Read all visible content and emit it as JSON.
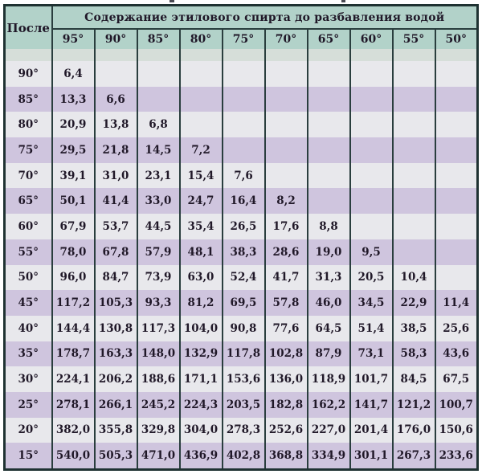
{
  "colors": {
    "header_teal": "#b2d2c9",
    "spacer_grey": "#d6ded9",
    "row_light": "#e8e8ec",
    "row_lavender": "#cfc5de",
    "border_dark": "#1f3232",
    "grid_line": "#2a3e3e",
    "text_dark": "#201828",
    "page_bg": "#ffffff"
  },
  "table": {
    "title": "Содержание этилового спирта до разбавления водой",
    "corner_label": "После",
    "columns": [
      "95°",
      "90°",
      "85°",
      "80°",
      "75°",
      "70°",
      "65°",
      "60°",
      "55°",
      "50°"
    ],
    "rows": [
      {
        "label": "90°",
        "cells": [
          "6,4",
          "",
          "",
          "",
          "",
          "",
          "",
          "",
          "",
          ""
        ]
      },
      {
        "label": "85°",
        "cells": [
          "13,3",
          "6,6",
          "",
          "",
          "",
          "",
          "",
          "",
          "",
          ""
        ]
      },
      {
        "label": "80°",
        "cells": [
          "20,9",
          "13,8",
          "6,8",
          "",
          "",
          "",
          "",
          "",
          "",
          ""
        ]
      },
      {
        "label": "75°",
        "cells": [
          "29,5",
          "21,8",
          "14,5",
          "7,2",
          "",
          "",
          "",
          "",
          "",
          ""
        ]
      },
      {
        "label": "70°",
        "cells": [
          "39,1",
          "31,0",
          "23,1",
          "15,4",
          "7,6",
          "",
          "",
          "",
          "",
          ""
        ]
      },
      {
        "label": "65°",
        "cells": [
          "50,1",
          "41,4",
          "33,0",
          "24,7",
          "16,4",
          "8,2",
          "",
          "",
          "",
          ""
        ]
      },
      {
        "label": "60°",
        "cells": [
          "67,9",
          "53,7",
          "44,5",
          "35,4",
          "26,5",
          "17,6",
          "8,8",
          "",
          "",
          ""
        ]
      },
      {
        "label": "55°",
        "cells": [
          "78,0",
          "67,8",
          "57,9",
          "48,1",
          "38,3",
          "28,6",
          "19,0",
          "9,5",
          "",
          ""
        ]
      },
      {
        "label": "50°",
        "cells": [
          "96,0",
          "84,7",
          "73,9",
          "63,0",
          "52,4",
          "41,7",
          "31,3",
          "20,5",
          "10,4",
          ""
        ]
      },
      {
        "label": "45°",
        "cells": [
          "117,2",
          "105,3",
          "93,3",
          "81,2",
          "69,5",
          "57,8",
          "46,0",
          "34,5",
          "22,9",
          "11,4"
        ]
      },
      {
        "label": "40°",
        "cells": [
          "144,4",
          "130,8",
          "117,3",
          "104,0",
          "90,8",
          "77,6",
          "64,5",
          "51,4",
          "38,5",
          "25,6"
        ]
      },
      {
        "label": "35°",
        "cells": [
          "178,7",
          "163,3",
          "148,0",
          "132,9",
          "117,8",
          "102,8",
          "87,9",
          "73,1",
          "58,3",
          "43,6"
        ]
      },
      {
        "label": "30°",
        "cells": [
          "224,1",
          "206,2",
          "188,6",
          "171,1",
          "153,6",
          "136,0",
          "118,9",
          "101,7",
          "84,5",
          "67,5"
        ]
      },
      {
        "label": "25°",
        "cells": [
          "278,1",
          "266,1",
          "245,2",
          "224,3",
          "203,5",
          "182,8",
          "162,2",
          "141,7",
          "121,2",
          "100,7"
        ]
      },
      {
        "label": "20°",
        "cells": [
          "382,0",
          "355,8",
          "329,8",
          "304,0",
          "278,3",
          "252,6",
          "227,0",
          "201,4",
          "176,0",
          "150,6"
        ]
      },
      {
        "label": "15°",
        "cells": [
          "540,0",
          "505,3",
          "471,0",
          "436,9",
          "402,8",
          "368,8",
          "334,9",
          "301,1",
          "267,3",
          "233,6"
        ]
      }
    ]
  },
  "chart_data": {
    "type": "table",
    "title": "Содержание этилового спирта до разбавления водой",
    "row_axis_label": "После",
    "columns": [
      95,
      90,
      85,
      80,
      75,
      70,
      65,
      60,
      55,
      50
    ],
    "rows": [
      {
        "label": 90,
        "values": [
          6.4,
          null,
          null,
          null,
          null,
          null,
          null,
          null,
          null,
          null
        ]
      },
      {
        "label": 85,
        "values": [
          13.3,
          6.6,
          null,
          null,
          null,
          null,
          null,
          null,
          null,
          null
        ]
      },
      {
        "label": 80,
        "values": [
          20.9,
          13.8,
          6.8,
          null,
          null,
          null,
          null,
          null,
          null,
          null
        ]
      },
      {
        "label": 75,
        "values": [
          29.5,
          21.8,
          14.5,
          7.2,
          null,
          null,
          null,
          null,
          null,
          null
        ]
      },
      {
        "label": 70,
        "values": [
          39.1,
          31.0,
          23.1,
          15.4,
          7.6,
          null,
          null,
          null,
          null,
          null
        ]
      },
      {
        "label": 65,
        "values": [
          50.1,
          41.4,
          33.0,
          24.7,
          16.4,
          8.2,
          null,
          null,
          null,
          null
        ]
      },
      {
        "label": 60,
        "values": [
          67.9,
          53.7,
          44.5,
          35.4,
          26.5,
          17.6,
          8.8,
          null,
          null,
          null
        ]
      },
      {
        "label": 55,
        "values": [
          78.0,
          67.8,
          57.9,
          48.1,
          38.3,
          28.6,
          19.0,
          9.5,
          null,
          null
        ]
      },
      {
        "label": 50,
        "values": [
          96.0,
          84.7,
          73.9,
          63.0,
          52.4,
          41.7,
          31.3,
          20.5,
          10.4,
          null
        ]
      },
      {
        "label": 45,
        "values": [
          117.2,
          105.3,
          93.3,
          81.2,
          69.5,
          57.8,
          46.0,
          34.5,
          22.9,
          11.4
        ]
      },
      {
        "label": 40,
        "values": [
          144.4,
          130.8,
          117.3,
          104.0,
          90.8,
          77.6,
          64.5,
          51.4,
          38.5,
          25.6
        ]
      },
      {
        "label": 35,
        "values": [
          178.7,
          163.3,
          148.0,
          132.9,
          117.8,
          102.8,
          87.9,
          73.1,
          58.3,
          43.6
        ]
      },
      {
        "label": 30,
        "values": [
          224.1,
          206.2,
          188.6,
          171.1,
          153.6,
          136.0,
          118.9,
          101.7,
          84.5,
          67.5
        ]
      },
      {
        "label": 25,
        "values": [
          278.1,
          266.1,
          245.2,
          224.3,
          203.5,
          182.8,
          162.2,
          141.7,
          121.2,
          100.7
        ]
      },
      {
        "label": 20,
        "values": [
          382.0,
          355.8,
          329.8,
          304.0,
          278.3,
          252.6,
          227.0,
          201.4,
          176.0,
          150.6
        ]
      },
      {
        "label": 15,
        "values": [
          540.0,
          505.3,
          471.0,
          436.9,
          402.8,
          368.8,
          334.9,
          301.1,
          267.3,
          233.6
        ]
      }
    ]
  }
}
